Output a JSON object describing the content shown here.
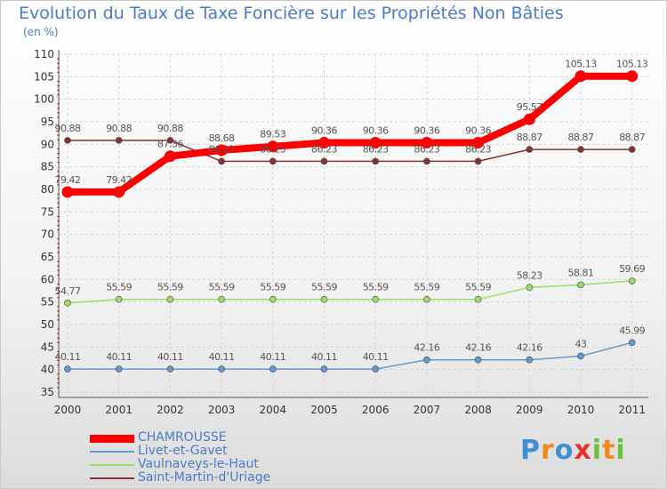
{
  "chart_data": {
    "type": "line",
    "title": "Evolution du Taux de Taxe Foncière sur les Propriétés Non Bâties",
    "ylabel": "(en %)",
    "categories": [
      "2000",
      "2001",
      "2002",
      "2003",
      "2004",
      "2005",
      "2006",
      "2007",
      "2008",
      "2009",
      "2010",
      "2011"
    ],
    "ylim": [
      35,
      110
    ],
    "yticks": [
      "35",
      "40",
      "45",
      "50",
      "55",
      "60",
      "65",
      "70",
      "75",
      "80",
      "85",
      "90",
      "95",
      "100",
      "105",
      "110"
    ],
    "series": [
      {
        "name": "CHAMROUSSE",
        "color": "#ff0000",
        "values": [
          79.42,
          79.42,
          87.36,
          88.68,
          89.53,
          90.36,
          90.36,
          90.36,
          90.36,
          95.57,
          105.13,
          105.13
        ],
        "labels": [
          "79.42",
          "79.42",
          "87.36",
          "88.68",
          "89.53",
          "90.36",
          "90.36",
          "90.36",
          "90.36",
          "95.57",
          "105.13",
          "105.13"
        ]
      },
      {
        "name": "Livet-et-Gavet",
        "color": "#6699cc",
        "values": [
          40.11,
          40.11,
          40.11,
          40.11,
          40.11,
          40.11,
          40.11,
          42.16,
          42.16,
          42.16,
          43,
          45.99
        ],
        "labels": [
          "40.11",
          "40.11",
          "40.11",
          "40.11",
          "40.11",
          "40.11",
          "40.11",
          "42.16",
          "42.16",
          "42.16",
          "43",
          "45.99"
        ]
      },
      {
        "name": "Vaulnaveys-le-Haut",
        "color": "#99dd66",
        "values": [
          54.77,
          55.59,
          55.59,
          55.59,
          55.59,
          55.59,
          55.59,
          55.59,
          55.59,
          58.23,
          58.81,
          59.69
        ],
        "labels": [
          "54.77",
          "55.59",
          "55.59",
          "55.59",
          "55.59",
          "55.59",
          "55.59",
          "55.59",
          "55.59",
          "58.23",
          "58.81",
          "59.69"
        ]
      },
      {
        "name": "Saint-Martin-d'Uriage",
        "color": "#883333",
        "values": [
          90.88,
          90.88,
          90.88,
          86.23,
          86.23,
          86.23,
          86.23,
          86.23,
          86.23,
          88.87,
          88.87,
          88.87
        ],
        "labels": [
          "90.88",
          "90.88",
          "90.88",
          "86.23",
          "86.23",
          "86.23",
          "86.23",
          "86.23",
          "86.23",
          "88.87",
          "88.87",
          "88.87"
        ]
      }
    ]
  },
  "branding": {
    "logo_letters": [
      {
        "ch": "P",
        "color": "#3d8fd8"
      },
      {
        "ch": "r",
        "color": "#f08a1c"
      },
      {
        "ch": "o",
        "color": "#3d8fd8"
      },
      {
        "ch": "x",
        "color": "#e83030"
      },
      {
        "ch": "i",
        "color": "#6cc03c"
      },
      {
        "ch": "t",
        "color": "#f08a1c"
      },
      {
        "ch": "i",
        "color": "#6cc03c"
      }
    ]
  }
}
